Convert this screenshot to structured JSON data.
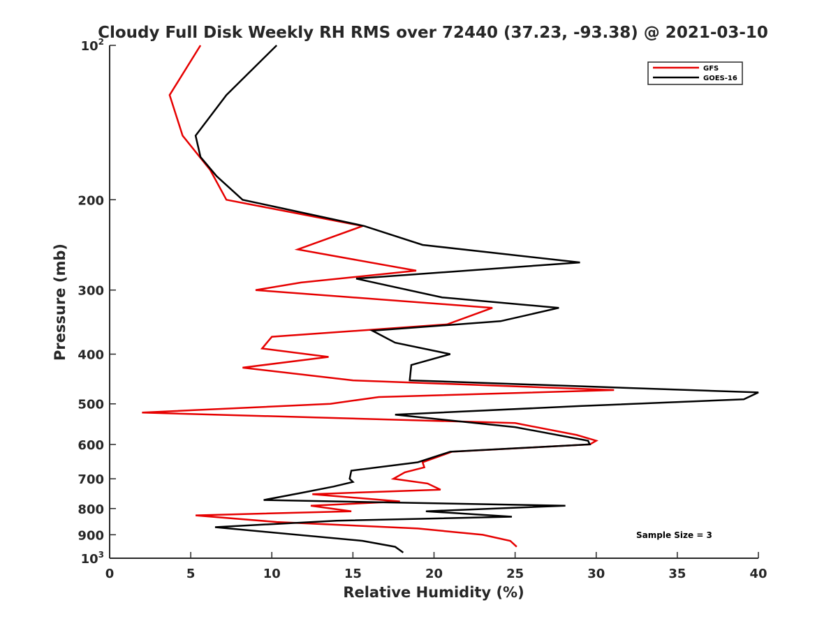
{
  "chart_data": {
    "type": "line",
    "title": "Cloudy Full Disk Weekly RH RMS over 72440 (37.23, -93.38) @ 2021-03-10",
    "xlabel": "Relative Humidity (%)",
    "ylabel": "Pressure (mb)",
    "xlim": [
      0,
      40
    ],
    "ylim": [
      1000,
      100
    ],
    "yscale": "log",
    "x_ticks": [
      "0",
      "5",
      "10",
      "15",
      "20",
      "25",
      "30",
      "35",
      "40"
    ],
    "y_ticks": [
      {
        "value": 100,
        "base": "10",
        "exp": "2"
      },
      {
        "value": 200,
        "label": "200"
      },
      {
        "value": 300,
        "label": "300"
      },
      {
        "value": 400,
        "label": "400"
      },
      {
        "value": 500,
        "label": "500"
      },
      {
        "value": 600,
        "label": "600"
      },
      {
        "value": 700,
        "label": "700"
      },
      {
        "value": 800,
        "label": "800"
      },
      {
        "value": 900,
        "label": "900"
      },
      {
        "value": 1000,
        "base": "10",
        "exp": "3"
      }
    ],
    "grid": false,
    "legend_position": "top-right",
    "annotation": "Sample Size = 3",
    "series": [
      {
        "name": "GFS",
        "color": "#e60000",
        "points": [
          [
            5.6,
            100
          ],
          [
            3.7,
            125
          ],
          [
            4.5,
            150
          ],
          [
            6.2,
            175
          ],
          [
            7.2,
            200
          ],
          [
            15.6,
            225
          ],
          [
            11.6,
            250
          ],
          [
            18.9,
            275
          ],
          [
            11.8,
            290
          ],
          [
            9.0,
            300
          ],
          [
            23.6,
            325
          ],
          [
            20.8,
            350
          ],
          [
            10.0,
            370
          ],
          [
            9.4,
            390
          ],
          [
            13.5,
            405
          ],
          [
            8.2,
            425
          ],
          [
            15.0,
            450
          ],
          [
            31.1,
            470
          ],
          [
            16.6,
            485
          ],
          [
            13.6,
            500
          ],
          [
            2.0,
            520
          ],
          [
            25.0,
            545
          ],
          [
            28.8,
            575
          ],
          [
            30.0,
            590
          ],
          [
            29.6,
            600
          ],
          [
            21.1,
            620
          ],
          [
            19.3,
            650
          ],
          [
            19.4,
            665
          ],
          [
            18.2,
            680
          ],
          [
            17.5,
            700
          ],
          [
            19.6,
            715
          ],
          [
            20.4,
            735
          ],
          [
            12.5,
            750
          ],
          [
            17.9,
            775
          ],
          [
            12.4,
            790
          ],
          [
            14.9,
            810
          ],
          [
            5.3,
            825
          ],
          [
            10.3,
            850
          ],
          [
            19.0,
            875
          ],
          [
            23.0,
            900
          ],
          [
            24.7,
            925
          ],
          [
            25.1,
            950
          ]
        ]
      },
      {
        "name": "GOES-16",
        "color": "#000000",
        "points": [
          [
            10.3,
            100
          ],
          [
            7.2,
            125
          ],
          [
            5.3,
            150
          ],
          [
            5.6,
            165
          ],
          [
            6.6,
            180
          ],
          [
            8.2,
            200
          ],
          [
            15.7,
            225
          ],
          [
            19.3,
            245
          ],
          [
            29.0,
            265
          ],
          [
            15.2,
            285
          ],
          [
            20.5,
            310
          ],
          [
            27.7,
            325
          ],
          [
            24.1,
            345
          ],
          [
            16.2,
            360
          ],
          [
            17.6,
            380
          ],
          [
            21.0,
            400
          ],
          [
            18.6,
            420
          ],
          [
            18.5,
            450
          ],
          [
            40.0,
            475
          ],
          [
            39.1,
            490
          ],
          [
            29.0,
            505
          ],
          [
            17.6,
            525
          ],
          [
            25.0,
            555
          ],
          [
            29.5,
            590
          ],
          [
            29.6,
            600
          ],
          [
            21.0,
            620
          ],
          [
            19.0,
            650
          ],
          [
            14.9,
            675
          ],
          [
            14.8,
            700
          ],
          [
            15.0,
            710
          ],
          [
            13.8,
            725
          ],
          [
            11.9,
            745
          ],
          [
            9.5,
            770
          ],
          [
            28.1,
            790
          ],
          [
            19.5,
            810
          ],
          [
            24.8,
            830
          ],
          [
            14.0,
            845
          ],
          [
            6.5,
            870
          ],
          [
            15.6,
            925
          ],
          [
            17.6,
            950
          ],
          [
            18.1,
            975
          ]
        ]
      }
    ]
  }
}
